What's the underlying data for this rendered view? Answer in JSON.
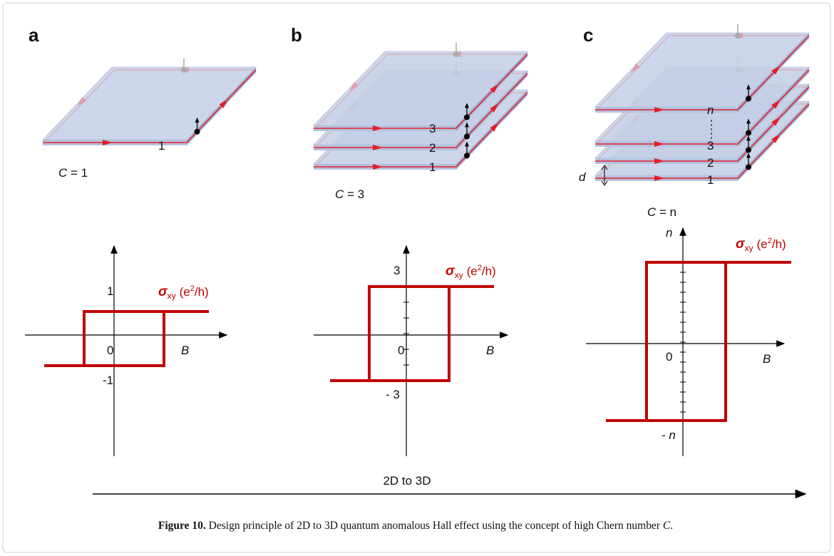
{
  "panels": [
    {
      "label": "a",
      "layers": [
        "1"
      ],
      "chern": {
        "symbol": "C",
        "equals": "= 1"
      },
      "graph": {
        "ticks": [
          "1",
          "0",
          "-1"
        ],
        "x_axis": "B",
        "sigma": {
          "symbol": "σ",
          "subscript": "xy",
          "unit_open": "(e",
          "superscript": "2",
          "unit_close": "/h)"
        }
      }
    },
    {
      "label": "b",
      "layers": [
        "3",
        "2",
        "1"
      ],
      "chern": {
        "symbol": "C",
        "equals": "= 3"
      },
      "graph": {
        "ticks": [
          "3",
          "0",
          "- 3"
        ],
        "x_axis": "B",
        "sigma": {
          "symbol": "σ",
          "subscript": "xy",
          "unit_open": "(e",
          "superscript": "2",
          "unit_close": "/h)"
        }
      }
    },
    {
      "label": "c",
      "layers": [
        "n",
        "3",
        "2",
        "1"
      ],
      "spacing": "d",
      "chern": {
        "symbol": "C",
        "equals": "= n"
      },
      "graph": {
        "ticks": [
          "n",
          "0",
          "- n"
        ],
        "x_axis": "B",
        "sigma": {
          "symbol": "σ",
          "subscript": "xy",
          "unit_open": "(e",
          "superscript": "2",
          "unit_close": "/h)"
        }
      }
    }
  ],
  "arrow_label": "2D to 3D",
  "caption": {
    "label": "Figure 10.",
    "text": "Design principle of 2D to 3D quantum anomalous Hall effect using the concept of high Chern number",
    "symbol": "C",
    "end": "."
  }
}
